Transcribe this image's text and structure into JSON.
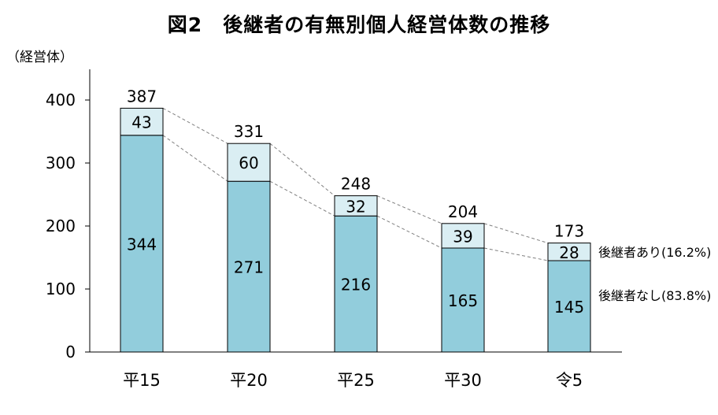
{
  "title": "図2　後継者の有無別個人経営体数の推移",
  "unit_label": "（経営体）",
  "colors": {
    "without_successor": "#92CDDC",
    "with_successor": "#DAEEF3",
    "outline": "#000000",
    "connector": "#808080"
  },
  "chart_data": {
    "type": "bar",
    "stacked": true,
    "title": "図2　後継者の有無別個人経営体数の推移",
    "ylabel": "（経営体）",
    "xlabel": "",
    "ylim": [
      0,
      450
    ],
    "yticks": [
      0,
      100,
      200,
      300,
      400
    ],
    "grid": false,
    "categories": [
      "平15",
      "平20",
      "平25",
      "平30",
      "令5"
    ],
    "series": [
      {
        "name": "後継者なし(83.8%)",
        "values": [
          344,
          271,
          216,
          165,
          145
        ]
      },
      {
        "name": "後継者あり(16.2%)",
        "values": [
          43,
          60,
          32,
          39,
          28
        ]
      }
    ],
    "totals": [
      387,
      331,
      248,
      204,
      173
    ],
    "legend": "right, inline labels beside last bar"
  }
}
